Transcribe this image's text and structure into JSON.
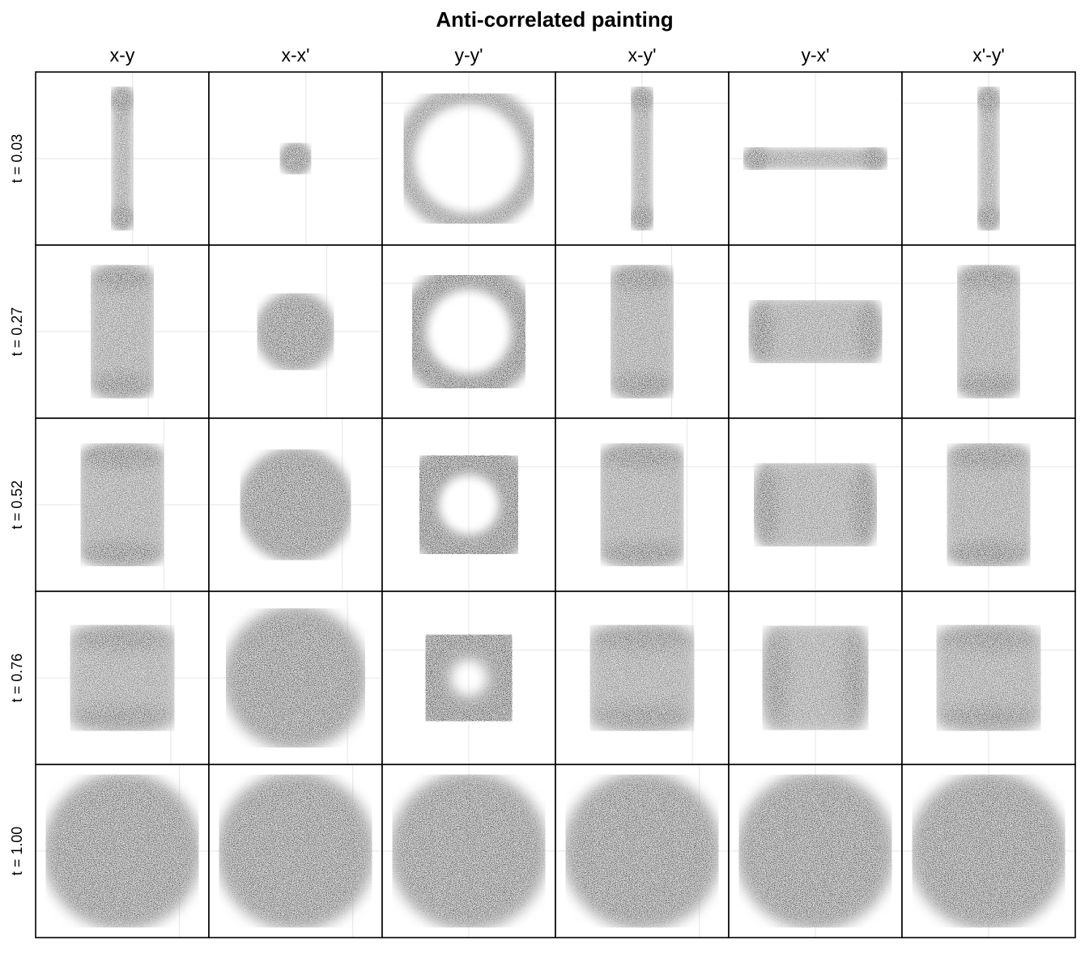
{
  "chart_data": {
    "type": "heatmap",
    "title": "Anti-correlated painting",
    "columns": [
      "x-y",
      "x-x'",
      "y-y'",
      "x-y'",
      "y-x'",
      "x'-y'"
    ],
    "rows": [
      "t = 0.03",
      "t = 0.27",
      "t = 0.52",
      "t = 0.76",
      "t = 1.00"
    ],
    "t_values": [
      0.03,
      0.27,
      0.52,
      0.76,
      1.0
    ],
    "grid": true,
    "colormap": "Greys",
    "ticks": "none",
    "panels": [
      [
        {
          "shape": "dumbbell-vertical",
          "radius": 0.09,
          "width": 0.1,
          "length": 0.34
        },
        {
          "shape": "disk",
          "radius": 0.09
        },
        {
          "shape": "ring",
          "inner_radius": 0.33,
          "outer_radius": 0.42
        },
        {
          "shape": "dumbbell-vertical",
          "radius": 0.09,
          "width": 0.1,
          "length": 0.34
        },
        {
          "shape": "dumbbell-horizontal",
          "radius": 0.09,
          "width": 0.1,
          "length": 0.34
        },
        {
          "shape": "dumbbell-vertical",
          "radius": 0.09,
          "width": 0.1,
          "length": 0.34
        }
      ],
      [
        {
          "shape": "dumbbell-vertical",
          "radius": 0.35,
          "width": 0.36,
          "length": 0.31
        },
        {
          "shape": "disk",
          "radius": 0.22
        },
        {
          "shape": "ring",
          "inner_radius": 0.26,
          "outer_radius": 0.39
        },
        {
          "shape": "dumbbell-vertical",
          "radius": 0.35,
          "width": 0.36,
          "length": 0.31
        },
        {
          "shape": "dumbbell-horizontal",
          "radius": 0.35,
          "width": 0.36,
          "length": 0.31
        },
        {
          "shape": "dumbbell-vertical",
          "radius": 0.35,
          "width": 0.36,
          "length": 0.31
        }
      ],
      [
        {
          "shape": "dumbbell-vertical",
          "radius": 0.4,
          "width": 0.48,
          "length": 0.28
        },
        {
          "shape": "disk",
          "radius": 0.32
        },
        {
          "shape": "ring",
          "inner_radius": 0.19,
          "outer_radius": 0.38
        },
        {
          "shape": "dumbbell-vertical",
          "radius": 0.4,
          "width": 0.48,
          "length": 0.28
        },
        {
          "shape": "dumbbell-horizontal",
          "radius": 0.4,
          "width": 0.48,
          "length": 0.28
        },
        {
          "shape": "dumbbell-vertical",
          "radius": 0.4,
          "width": 0.48,
          "length": 0.28
        }
      ],
      [
        {
          "shape": "dumbbell-vertical",
          "radius": 0.45,
          "width": 0.6,
          "length": 0.23
        },
        {
          "shape": "disk",
          "radius": 0.4
        },
        {
          "shape": "ring",
          "inner_radius": 0.13,
          "outer_radius": 0.37
        },
        {
          "shape": "dumbbell-vertical",
          "radius": 0.45,
          "width": 0.6,
          "length": 0.23
        },
        {
          "shape": "dumbbell-horizontal",
          "radius": 0.45,
          "width": 0.6,
          "length": 0.23
        },
        {
          "shape": "dumbbell-vertical",
          "radius": 0.45,
          "width": 0.6,
          "length": 0.23
        }
      ],
      [
        {
          "shape": "disk",
          "radius": 0.44
        },
        {
          "shape": "disk",
          "radius": 0.44
        },
        {
          "shape": "disk",
          "radius": 0.44
        },
        {
          "shape": "disk",
          "radius": 0.44
        },
        {
          "shape": "disk",
          "radius": 0.44
        },
        {
          "shape": "disk",
          "radius": 0.44
        }
      ]
    ]
  }
}
